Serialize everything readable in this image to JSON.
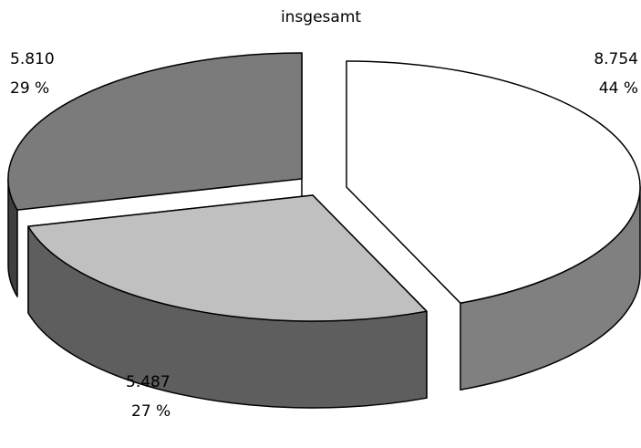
{
  "chart_data": {
    "type": "pie",
    "style": "3d-exploded",
    "title": "insgesamt",
    "slices": [
      {
        "value": 8754,
        "value_label": "8.754",
        "percent": 44,
        "percent_label": "44 %",
        "top_color": "#ffffff",
        "side_color": "#808080"
      },
      {
        "value": 5487,
        "value_label": "5.487",
        "percent": 27,
        "percent_label": "27 %",
        "top_color": "#c0c0c0",
        "side_color": "#5e5e5e"
      },
      {
        "value": 5810,
        "value_label": "5.810",
        "percent": 29,
        "percent_label": "29 %",
        "top_color": "#7b7b7b",
        "side_color": "#3f3f3f"
      }
    ]
  }
}
